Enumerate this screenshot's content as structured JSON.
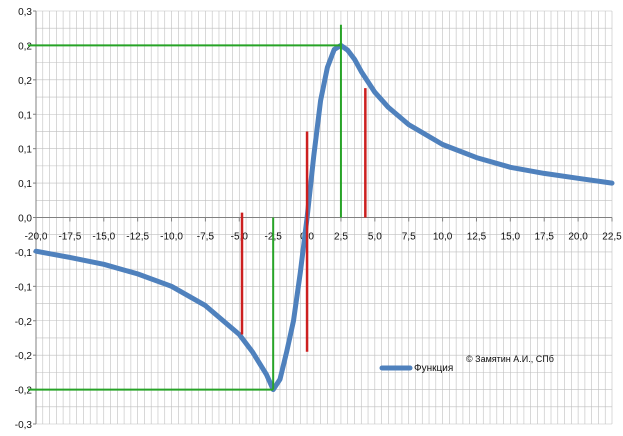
{
  "chart_data": {
    "type": "line",
    "title": "",
    "xlabel": "",
    "ylabel": "",
    "xlim": [
      -20.0,
      22.5
    ],
    "ylim": [
      -0.3,
      0.3
    ],
    "x_ticks": [
      -20,
      -17.5,
      -15,
      -12.5,
      -10,
      -7.5,
      -5,
      -2.5,
      0,
      2.5,
      5,
      7.5,
      10,
      12.5,
      15,
      17.5,
      20,
      22.5
    ],
    "x_tick_labels": [
      "-20,0",
      "-17,5",
      "-15,0",
      "-12,5",
      "-10,0",
      "-7,5",
      "-5,0",
      "-2,5",
      "0,0",
      "2,5",
      "5,0",
      "7,5",
      "10,0",
      "12,5",
      "15,0",
      "17,5",
      "20,0",
      "22,5"
    ],
    "y_ticks": [
      0.3,
      0.25,
      0.2,
      0.15,
      0.1,
      0.05,
      0.0,
      -0.05,
      -0.1,
      -0.15,
      -0.2,
      -0.25,
      -0.3
    ],
    "y_tick_labels": [
      "0,3",
      "0,2",
      "0,2",
      "0,1",
      "0,1",
      "0,1",
      "0,0",
      "-0,1",
      "-0,1",
      "-0,2",
      "-0,2",
      "-0,2",
      "-0,3"
    ],
    "grid": true,
    "legend_position": "bottom-right",
    "series": [
      {
        "name": "Функция",
        "color": "#4f81bd",
        "x": [
          -20,
          -17.5,
          -15,
          -12.5,
          -10,
          -7.5,
          -5,
          -4,
          -3,
          -2.5,
          -2,
          -1.5,
          -1,
          -0.5,
          0,
          0.5,
          1,
          1.5,
          2,
          2.5,
          3,
          3.5,
          4,
          5,
          6,
          7.5,
          10,
          12.5,
          15,
          17.5,
          20,
          22.5
        ],
        "y": [
          -0.049,
          -0.058,
          -0.068,
          -0.082,
          -0.1,
          -0.128,
          -0.17,
          -0.196,
          -0.228,
          -0.25,
          -0.235,
          -0.195,
          -0.15,
          -0.08,
          0.0,
          0.09,
          0.17,
          0.218,
          0.244,
          0.25,
          0.243,
          0.23,
          0.212,
          0.182,
          0.16,
          0.135,
          0.106,
          0.087,
          0.073,
          0.064,
          0.057,
          0.05
        ]
      }
    ],
    "annotations": {
      "green_lines": [
        {
          "type": "h",
          "y": 0.25,
          "x_from": -20,
          "x_to": 2.5
        },
        {
          "type": "v",
          "x": 2.5,
          "y_from": 0.0,
          "y_to": 0.28
        },
        {
          "type": "h",
          "y": -0.25,
          "x_from": -20,
          "x_to": -2.5
        },
        {
          "type": "v",
          "x": -2.5,
          "y_from": -0.25,
          "y_to": 0.0
        }
      ],
      "red_lines": [
        {
          "x": -4.8,
          "y_from": -0.17,
          "y_to": 0.007
        },
        {
          "x": 0.0,
          "y_from": -0.195,
          "y_to": 0.125
        },
        {
          "x": 4.3,
          "y_from": 0.0,
          "y_to": 0.188
        }
      ],
      "green_color": "#27a327",
      "red_color": "#cc1f1f"
    },
    "copyright": "© Замятин А.И., СПб"
  }
}
